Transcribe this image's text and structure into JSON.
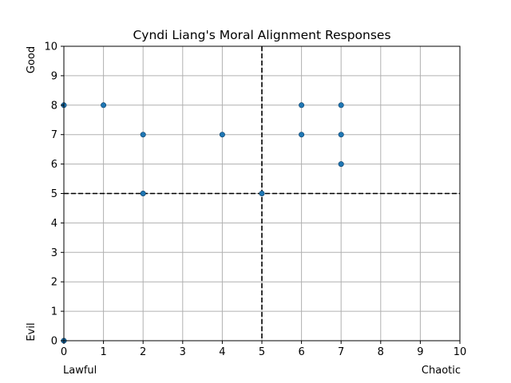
{
  "chart_data": {
    "type": "scatter",
    "title": "Cyndi Liang's Moral Alignment Responses",
    "xlabel_left": "Lawful",
    "xlabel_right": "Chaotic",
    "ylabel_top": "Good",
    "ylabel_bottom": "Evil",
    "xlim": [
      0,
      10
    ],
    "ylim": [
      0,
      10
    ],
    "xticks": [
      "0",
      "1",
      "2",
      "3",
      "4",
      "5",
      "6",
      "7",
      "8",
      "9",
      "10"
    ],
    "yticks": [
      "0",
      "1",
      "2",
      "3",
      "4",
      "5",
      "6",
      "7",
      "8",
      "9",
      "10"
    ],
    "grid": true,
    "reference_lines": {
      "x": 5,
      "y": 5,
      "style": "dashed"
    },
    "series": [
      {
        "color": "#1f77b4",
        "points": [
          {
            "x": 0,
            "y": 8
          },
          {
            "x": 1,
            "y": 8
          },
          {
            "x": 2,
            "y": 7
          },
          {
            "x": 2,
            "y": 5
          },
          {
            "x": 4,
            "y": 7
          },
          {
            "x": 5,
            "y": 5
          },
          {
            "x": 6,
            "y": 8
          },
          {
            "x": 6,
            "y": 7
          },
          {
            "x": 7,
            "y": 8
          },
          {
            "x": 7,
            "y": 7
          },
          {
            "x": 7,
            "y": 6
          },
          {
            "x": 0,
            "y": 0
          }
        ]
      }
    ]
  }
}
